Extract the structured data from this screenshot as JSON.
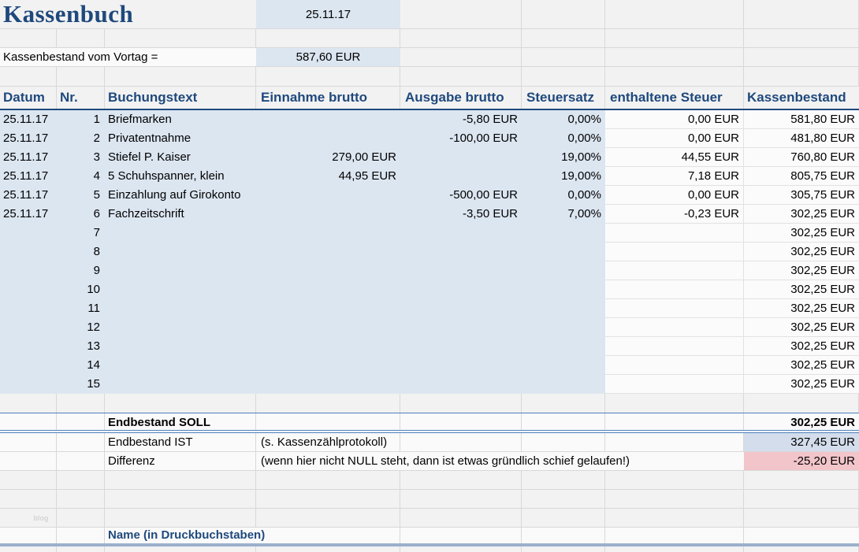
{
  "app": {
    "title": "Kassenbuch",
    "date": "25.11.17"
  },
  "vortag": {
    "label": "Kassenbestand vom Vortag =",
    "value": "587,60 EUR"
  },
  "table": {
    "headers": [
      "Datum",
      "Nr.",
      "Buchungstext",
      "Einnahme brutto",
      "Ausgabe brutto",
      "Steuersatz",
      "enthaltene Steuer",
      "Kassenbestand"
    ],
    "rows": [
      {
        "datum": "25.11.17",
        "nr": "1",
        "text": "Briefmarken",
        "einnahme": "",
        "ausgabe": "-5,80 EUR",
        "steuersatz": "0,00%",
        "steuer": "0,00 EUR",
        "bestand": "581,80 EUR"
      },
      {
        "datum": "25.11.17",
        "nr": "2",
        "text": "Privatentnahme",
        "einnahme": "",
        "ausgabe": "-100,00 EUR",
        "steuersatz": "0,00%",
        "steuer": "0,00 EUR",
        "bestand": "481,80 EUR"
      },
      {
        "datum": "25.11.17",
        "nr": "3",
        "text": "Stiefel P. Kaiser",
        "einnahme": "279,00 EUR",
        "ausgabe": "",
        "steuersatz": "19,00%",
        "steuer": "44,55 EUR",
        "bestand": "760,80 EUR"
      },
      {
        "datum": "25.11.17",
        "nr": "4",
        "text": "5 Schuhspanner, klein",
        "einnahme": "44,95 EUR",
        "ausgabe": "",
        "steuersatz": "19,00%",
        "steuer": "7,18 EUR",
        "bestand": "805,75 EUR"
      },
      {
        "datum": "25.11.17",
        "nr": "5",
        "text": "Einzahlung auf Girokonto",
        "einnahme": "",
        "ausgabe": "-500,00 EUR",
        "steuersatz": "0,00%",
        "steuer": "0,00 EUR",
        "bestand": "305,75 EUR"
      },
      {
        "datum": "25.11.17",
        "nr": "6",
        "text": "Fachzeitschrift",
        "einnahme": "",
        "ausgabe": "-3,50 EUR",
        "steuersatz": "7,00%",
        "steuer": "-0,23 EUR",
        "bestand": "302,25 EUR"
      },
      {
        "datum": "",
        "nr": "7",
        "text": "",
        "einnahme": "",
        "ausgabe": "",
        "steuersatz": "",
        "steuer": "",
        "bestand": "302,25 EUR"
      },
      {
        "datum": "",
        "nr": "8",
        "text": "",
        "einnahme": "",
        "ausgabe": "",
        "steuersatz": "",
        "steuer": "",
        "bestand": "302,25 EUR"
      },
      {
        "datum": "",
        "nr": "9",
        "text": "",
        "einnahme": "",
        "ausgabe": "",
        "steuersatz": "",
        "steuer": "",
        "bestand": "302,25 EUR"
      },
      {
        "datum": "",
        "nr": "10",
        "text": "",
        "einnahme": "",
        "ausgabe": "",
        "steuersatz": "",
        "steuer": "",
        "bestand": "302,25 EUR"
      },
      {
        "datum": "",
        "nr": "11",
        "text": "",
        "einnahme": "",
        "ausgabe": "",
        "steuersatz": "",
        "steuer": "",
        "bestand": "302,25 EUR"
      },
      {
        "datum": "",
        "nr": "12",
        "text": "",
        "einnahme": "",
        "ausgabe": "",
        "steuersatz": "",
        "steuer": "",
        "bestand": "302,25 EUR"
      },
      {
        "datum": "",
        "nr": "13",
        "text": "",
        "einnahme": "",
        "ausgabe": "",
        "steuersatz": "",
        "steuer": "",
        "bestand": "302,25 EUR"
      },
      {
        "datum": "",
        "nr": "14",
        "text": "",
        "einnahme": "",
        "ausgabe": "",
        "steuersatz": "",
        "steuer": "",
        "bestand": "302,25 EUR"
      },
      {
        "datum": "",
        "nr": "15",
        "text": "",
        "einnahme": "",
        "ausgabe": "",
        "steuersatz": "",
        "steuer": "",
        "bestand": "302,25 EUR"
      }
    ]
  },
  "summary": {
    "soll": {
      "label": "Endbestand SOLL",
      "value": "302,25 EUR"
    },
    "ist": {
      "label": "Endbestand IST",
      "note": "(s. Kassenzählprotokoll)",
      "value": "327,45 EUR"
    },
    "differenz": {
      "label": "Differenz",
      "note": "(wenn hier nicht NULL steht, dann ist etwas gründlich schief gelaufen!)",
      "value": "-25,20 EUR"
    }
  },
  "footer": {
    "name_label": "Name (in Druckbuchstaben)",
    "watermark": "blog"
  },
  "colors": {
    "accent_text": "#1F497D",
    "data_area_bg": "#DCE6F1",
    "ist_value_bg": "#D3DDEB",
    "differenz_value_bg": "#F2C5CB",
    "total_border": "#4F81BD",
    "name_underline": "#9BB0CC",
    "gridline": "#D8D8D8"
  }
}
